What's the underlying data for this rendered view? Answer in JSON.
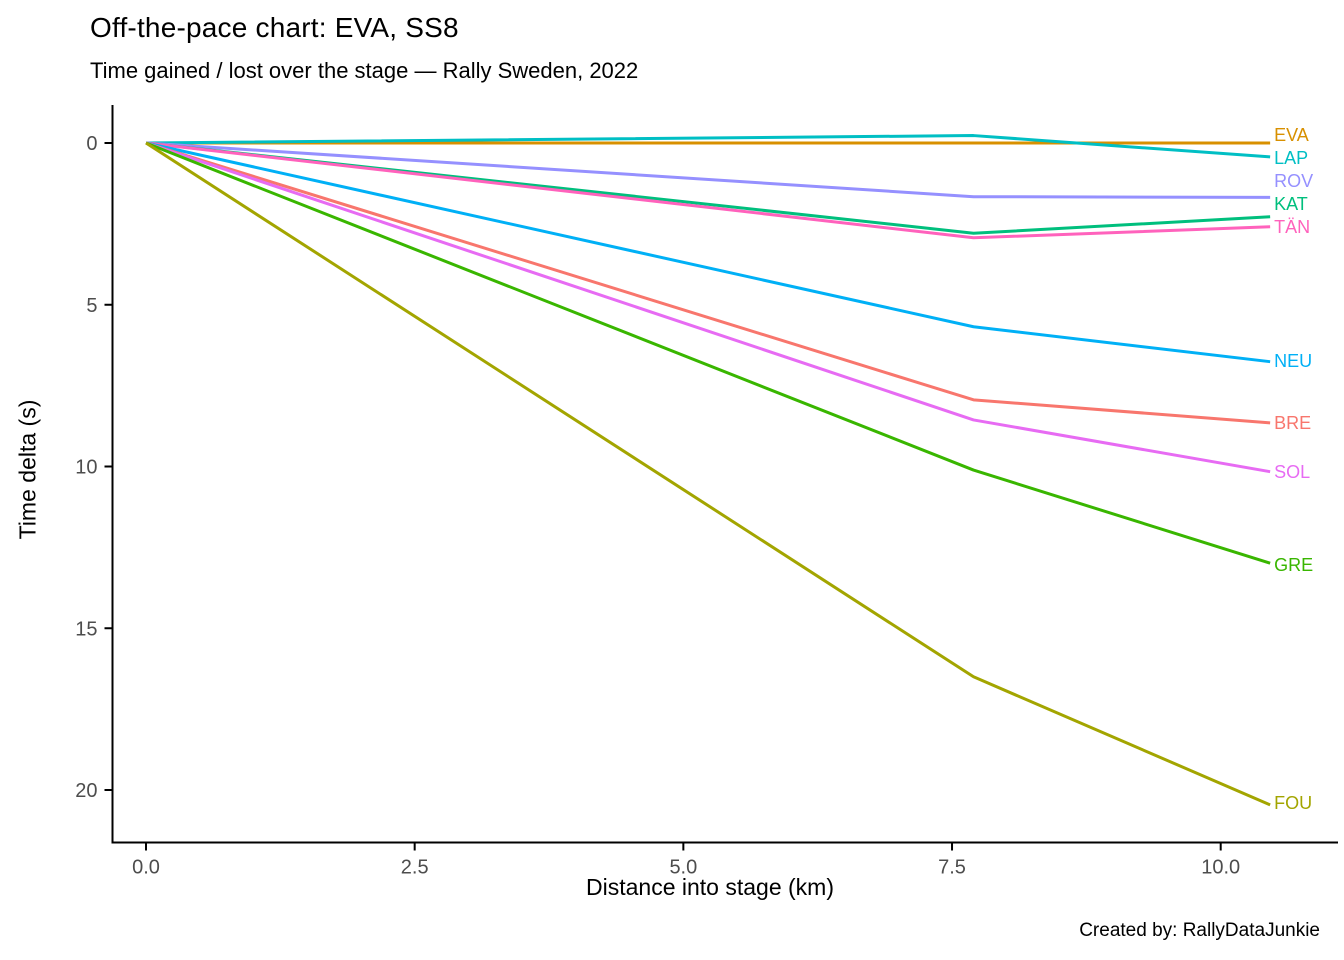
{
  "header": {
    "title": "Off-the-pace chart: EVA, SS8",
    "subtitle": "Time gained / lost over the stage — Rally Sweden, 2022"
  },
  "caption": "Created by: RallyDataJunkie",
  "style": {
    "background": "#ffffff",
    "axis_color": "#000000",
    "tick_label_color": "#4d4d4d",
    "title_color": "#000000"
  },
  "chart_data": {
    "type": "line",
    "title": "Off-the-pace chart: EVA, SS8",
    "subtitle": "Time gained / lost over the stage — Rally Sweden, 2022",
    "xlabel": "Distance into stage (km)",
    "ylabel": "Time delta (s)",
    "grid": false,
    "legend_position": "line-end-labels-right",
    "y_axis_reversed": true,
    "xlim": [
      -0.31,
      11.15
    ],
    "ylim": [
      -1.2,
      21.65
    ],
    "x_ticks": [
      0.0,
      2.5,
      5.0,
      7.5,
      10.0
    ],
    "x_tick_labels": [
      "0.0",
      "2.5",
      "5.0",
      "7.5",
      "10.0"
    ],
    "y_ticks": [
      0,
      5,
      10,
      15,
      20
    ],
    "y_tick_labels": [
      "0",
      "5",
      "10",
      "15",
      "20"
    ],
    "x": [
      0,
      7.7,
      10.46
    ],
    "series": [
      {
        "name": "EVA",
        "color": "#D89000",
        "values": [
          0,
          0,
          0
        ],
        "label_y": -0.25
      },
      {
        "name": "LAP",
        "color": "#00BFC4",
        "values": [
          0,
          -0.23,
          0.43
        ],
        "label_y": 0.46
      },
      {
        "name": "ROV",
        "color": "#9590FF",
        "values": [
          0,
          1.66,
          1.68
        ],
        "label_y": 1.17
      },
      {
        "name": "KAT",
        "color": "#00BF7D",
        "values": [
          0,
          2.79,
          2.28
        ],
        "label_y": 1.89
      },
      {
        "name": "TÄN",
        "color": "#FF62BC",
        "values": [
          0,
          2.93,
          2.59
        ],
        "label_y": 2.6
      },
      {
        "name": "NEU",
        "color": "#00B0F6",
        "values": [
          0,
          5.68,
          6.76
        ],
        "label_y": 6.74
      },
      {
        "name": "BRE",
        "color": "#F8766D",
        "values": [
          0,
          7.94,
          8.65
        ],
        "label_y": 8.66
      },
      {
        "name": "SOL",
        "color": "#E76BF3",
        "values": [
          0,
          8.56,
          10.16
        ],
        "label_y": 10.17
      },
      {
        "name": "GRE",
        "color": "#39B600",
        "values": [
          0,
          10.11,
          12.99
        ],
        "label_y": 13.04
      },
      {
        "name": "FOU",
        "color": "#A3A500",
        "values": [
          0,
          16.5,
          20.46
        ],
        "label_y": 20.4
      }
    ]
  }
}
